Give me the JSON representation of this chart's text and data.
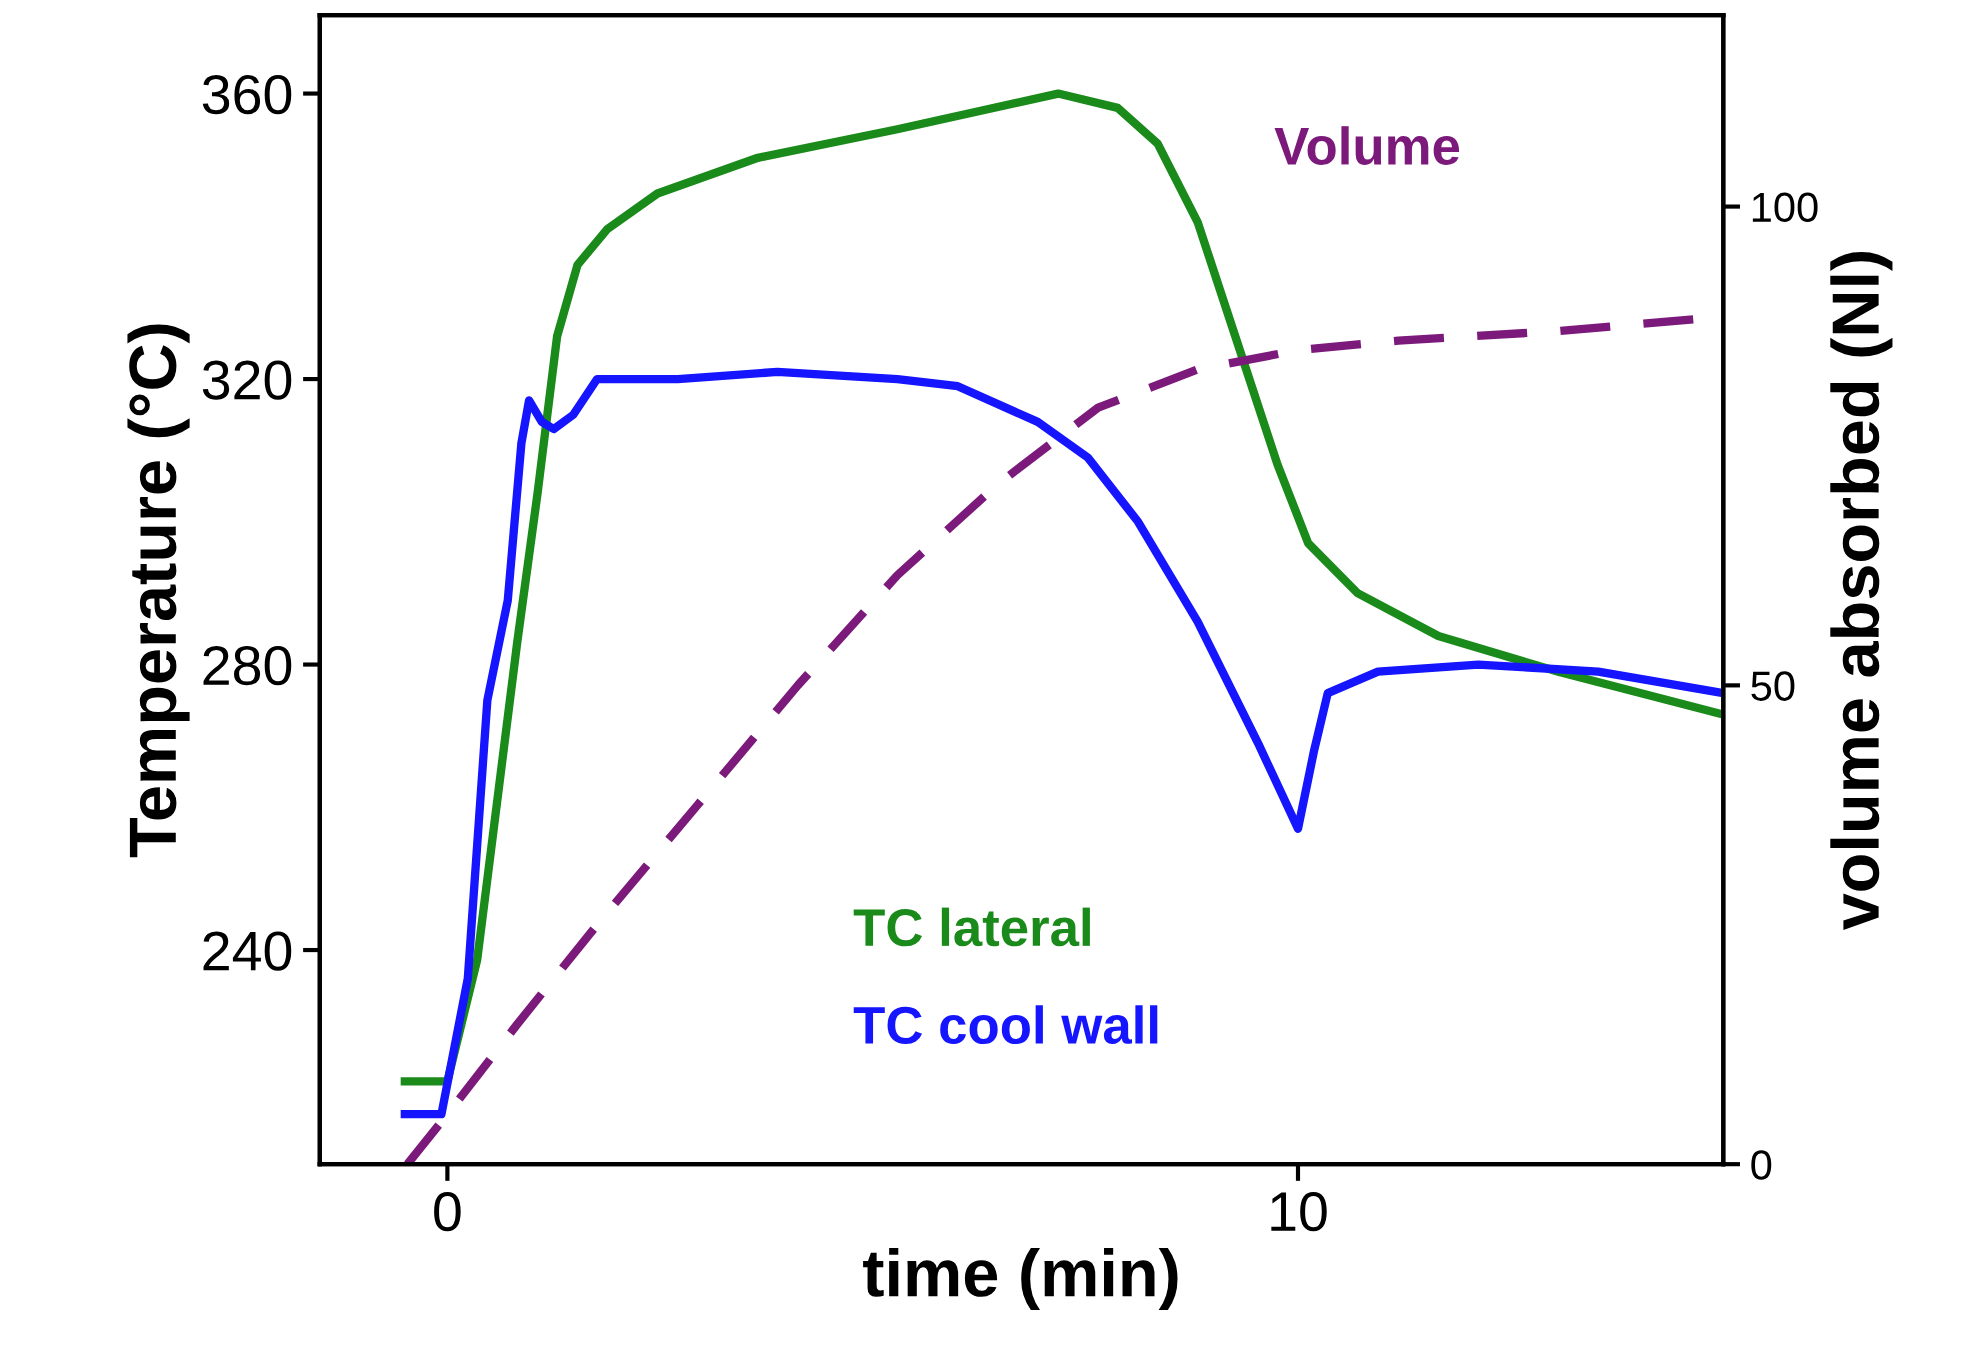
{
  "chart_data": {
    "type": "line",
    "xlabel": "time (min)",
    "ylabel": "Temperature (°C)",
    "y2label": "volume absorbed (Nl)",
    "legend": false,
    "grid": false,
    "xlim": [
      -1.5,
      15
    ],
    "xticks": [
      0,
      10
    ],
    "ylim": [
      210,
      371
    ],
    "yticks": [
      240,
      280,
      320,
      360
    ],
    "y2lim": [
      0,
      120
    ],
    "y2ticks": [
      0,
      50,
      100
    ],
    "series": [
      {
        "name": "TC lateral",
        "color": "#1a8a1a",
        "line_style": "solid",
        "x": [
          -0.5,
          0,
          0.35,
          0.82,
          1.06,
          1.29,
          1.53,
          1.88,
          2.47,
          3.65,
          5.29,
          7.18,
          7.88,
          8.35,
          8.82,
          9.29,
          9.76,
          10.12,
          10.7,
          11.65,
          13.06,
          15
        ],
        "values": [
          221.6,
          221.6,
          238.6,
          283,
          304,
          326,
          336,
          341,
          346,
          351,
          355,
          360,
          358,
          353,
          342,
          325,
          308,
          297,
          290,
          284,
          279,
          273
        ]
      },
      {
        "name": "TC cool wall",
        "color": "#1515ff",
        "line_style": "solid",
        "x": [
          -0.5,
          -0.07,
          0.24,
          0.47,
          0.71,
          0.87,
          0.96,
          1.11,
          1.25,
          1.48,
          1.76,
          2.24,
          2.71,
          3.88,
          5.29,
          6.0,
          6.94,
          7.53,
          8.12,
          8.82,
          9.53,
          10.0,
          10.19,
          10.35,
          10.94,
          12.12,
          13.53,
          15
        ],
        "values": [
          217,
          217,
          236,
          275,
          289,
          311,
          317,
          314,
          313,
          315,
          320,
          320,
          320,
          321,
          320,
          319,
          314,
          309,
          300,
          286,
          269,
          257,
          268,
          276,
          279,
          280,
          279,
          276
        ]
      },
      {
        "name": "Volume",
        "color": "#7b1a7b",
        "line_style": "dashed",
        "axis": "y2",
        "x": [
          -0.47,
          0,
          0.82,
          1.76,
          2.94,
          4.12,
          5.29,
          6.47,
          7.65,
          8.82,
          10.0,
          11.18,
          13.06,
          15
        ],
        "values": [
          0,
          5.2,
          14.6,
          25,
          37.5,
          50,
          61.5,
          71,
          79,
          83,
          85,
          86,
          87,
          88.5
        ]
      }
    ]
  }
}
